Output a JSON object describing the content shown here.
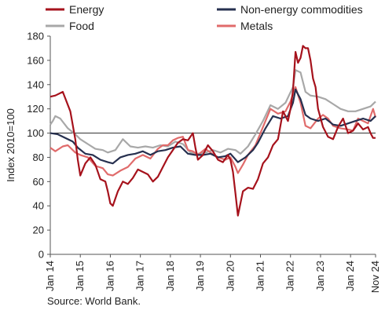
{
  "chart_data": {
    "type": "line",
    "ylabel": "Index 2010=100",
    "ylim": [
      0,
      180
    ],
    "yticks": [
      0,
      20,
      40,
      60,
      80,
      100,
      120,
      140,
      160,
      180
    ],
    "reference_line": 100,
    "x_start": "2014-01",
    "x_end": "2024-11",
    "xticks": [
      "Jan 14",
      "Jan 15",
      "Jan 16",
      "Jan 17",
      "Jan 18",
      "Jan 19",
      "Jan 20",
      "Jan 21",
      "Jan 22",
      "Jan 23",
      "Jan 24",
      "Nov 24"
    ],
    "legend_position": "top",
    "series": [
      {
        "name": "Energy",
        "color": "#a6121c",
        "points": [
          [
            "2014-01",
            130
          ],
          [
            "2014-03",
            131
          ],
          [
            "2014-06",
            134
          ],
          [
            "2014-09",
            118
          ],
          [
            "2014-11",
            95
          ],
          [
            "2014-12",
            78
          ],
          [
            "2015-01",
            65
          ],
          [
            "2015-03",
            75
          ],
          [
            "2015-05",
            80
          ],
          [
            "2015-07",
            74
          ],
          [
            "2015-09",
            62
          ],
          [
            "2015-11",
            60
          ],
          [
            "2015-12",
            52
          ],
          [
            "2016-01",
            42
          ],
          [
            "2016-02",
            40
          ],
          [
            "2016-04",
            52
          ],
          [
            "2016-06",
            60
          ],
          [
            "2016-08",
            58
          ],
          [
            "2016-10",
            63
          ],
          [
            "2016-12",
            70
          ],
          [
            "2017-02",
            68
          ],
          [
            "2017-04",
            66
          ],
          [
            "2017-06",
            60
          ],
          [
            "2017-08",
            64
          ],
          [
            "2017-10",
            72
          ],
          [
            "2017-12",
            80
          ],
          [
            "2018-02",
            86
          ],
          [
            "2018-04",
            92
          ],
          [
            "2018-06",
            95
          ],
          [
            "2018-08",
            94
          ],
          [
            "2018-10",
            100
          ],
          [
            "2018-11",
            88
          ],
          [
            "2018-12",
            78
          ],
          [
            "2019-02",
            82
          ],
          [
            "2019-04",
            90
          ],
          [
            "2019-06",
            85
          ],
          [
            "2019-08",
            78
          ],
          [
            "2019-10",
            76
          ],
          [
            "2019-12",
            82
          ],
          [
            "2020-01",
            78
          ],
          [
            "2020-02",
            68
          ],
          [
            "2020-03",
            50
          ],
          [
            "2020-04",
            32
          ],
          [
            "2020-05",
            42
          ],
          [
            "2020-06",
            52
          ],
          [
            "2020-08",
            55
          ],
          [
            "2020-10",
            54
          ],
          [
            "2020-12",
            62
          ],
          [
            "2021-02",
            75
          ],
          [
            "2021-04",
            80
          ],
          [
            "2021-06",
            90
          ],
          [
            "2021-08",
            95
          ],
          [
            "2021-10",
            118
          ],
          [
            "2021-12",
            110
          ],
          [
            "2022-01",
            120
          ],
          [
            "2022-02",
            135
          ],
          [
            "2022-03",
            167
          ],
          [
            "2022-04",
            158
          ],
          [
            "2022-05",
            162
          ],
          [
            "2022-06",
            172
          ],
          [
            "2022-07",
            170
          ],
          [
            "2022-08",
            170
          ],
          [
            "2022-09",
            160
          ],
          [
            "2022-10",
            145
          ],
          [
            "2022-11",
            138
          ],
          [
            "2022-12",
            120
          ],
          [
            "2023-02",
            105
          ],
          [
            "2023-04",
            97
          ],
          [
            "2023-06",
            95
          ],
          [
            "2023-08",
            105
          ],
          [
            "2023-10",
            112
          ],
          [
            "2023-12",
            100
          ],
          [
            "2024-02",
            102
          ],
          [
            "2024-04",
            108
          ],
          [
            "2024-06",
            103
          ],
          [
            "2024-08",
            105
          ],
          [
            "2024-09",
            100
          ],
          [
            "2024-10",
            96
          ],
          [
            "2024-11",
            96
          ]
        ]
      },
      {
        "name": "Non-energy commodities",
        "color": "#26304f",
        "points": [
          [
            "2014-01",
            100
          ],
          [
            "2014-04",
            99
          ],
          [
            "2014-07",
            96
          ],
          [
            "2014-10",
            93
          ],
          [
            "2014-12",
            88
          ],
          [
            "2015-03",
            83
          ],
          [
            "2015-06",
            82
          ],
          [
            "2015-09",
            78
          ],
          [
            "2015-12",
            76
          ],
          [
            "2016-02",
            75
          ],
          [
            "2016-05",
            80
          ],
          [
            "2016-08",
            82
          ],
          [
            "2016-11",
            83
          ],
          [
            "2017-02",
            85
          ],
          [
            "2017-05",
            82
          ],
          [
            "2017-08",
            85
          ],
          [
            "2017-11",
            86
          ],
          [
            "2018-02",
            88
          ],
          [
            "2018-05",
            89
          ],
          [
            "2018-08",
            83
          ],
          [
            "2018-11",
            82
          ],
          [
            "2019-02",
            82
          ],
          [
            "2019-05",
            83
          ],
          [
            "2019-08",
            80
          ],
          [
            "2019-11",
            81
          ],
          [
            "2020-01",
            83
          ],
          [
            "2020-04",
            76
          ],
          [
            "2020-07",
            80
          ],
          [
            "2020-10",
            86
          ],
          [
            "2020-12",
            92
          ],
          [
            "2021-03",
            104
          ],
          [
            "2021-06",
            114
          ],
          [
            "2021-09",
            112
          ],
          [
            "2021-12",
            114
          ],
          [
            "2022-02",
            125
          ],
          [
            "2022-03",
            136
          ],
          [
            "2022-05",
            128
          ],
          [
            "2022-07",
            115
          ],
          [
            "2022-09",
            112
          ],
          [
            "2022-12",
            110
          ],
          [
            "2023-03",
            112
          ],
          [
            "2023-06",
            107
          ],
          [
            "2023-09",
            106
          ],
          [
            "2023-12",
            108
          ],
          [
            "2024-03",
            110
          ],
          [
            "2024-06",
            112
          ],
          [
            "2024-09",
            110
          ],
          [
            "2024-11",
            114
          ]
        ]
      },
      {
        "name": "Food",
        "color": "#a8a8a8",
        "points": [
          [
            "2014-01",
            107
          ],
          [
            "2014-02",
            110
          ],
          [
            "2014-03",
            114
          ],
          [
            "2014-05",
            112
          ],
          [
            "2014-08",
            104
          ],
          [
            "2014-11",
            99
          ],
          [
            "2015-01",
            95
          ],
          [
            "2015-04",
            91
          ],
          [
            "2015-07",
            87
          ],
          [
            "2015-10",
            86
          ],
          [
            "2015-12",
            84
          ],
          [
            "2016-03",
            86
          ],
          [
            "2016-06",
            95
          ],
          [
            "2016-09",
            89
          ],
          [
            "2016-12",
            88
          ],
          [
            "2017-03",
            89
          ],
          [
            "2017-06",
            88
          ],
          [
            "2017-09",
            90
          ],
          [
            "2017-12",
            89
          ],
          [
            "2018-03",
            93
          ],
          [
            "2018-06",
            91
          ],
          [
            "2018-09",
            84
          ],
          [
            "2018-12",
            83
          ],
          [
            "2019-03",
            84
          ],
          [
            "2019-06",
            86
          ],
          [
            "2019-09",
            84
          ],
          [
            "2019-12",
            87
          ],
          [
            "2020-03",
            86
          ],
          [
            "2020-05",
            83
          ],
          [
            "2020-08",
            89
          ],
          [
            "2020-11",
            99
          ],
          [
            "2021-02",
            110
          ],
          [
            "2021-05",
            123
          ],
          [
            "2021-08",
            120
          ],
          [
            "2021-11",
            125
          ],
          [
            "2022-02",
            138
          ],
          [
            "2022-03",
            152
          ],
          [
            "2022-05",
            150
          ],
          [
            "2022-07",
            134
          ],
          [
            "2022-09",
            131
          ],
          [
            "2022-12",
            130
          ],
          [
            "2023-03",
            128
          ],
          [
            "2023-06",
            124
          ],
          [
            "2023-09",
            120
          ],
          [
            "2023-12",
            118
          ],
          [
            "2024-03",
            118
          ],
          [
            "2024-06",
            120
          ],
          [
            "2024-09",
            122
          ],
          [
            "2024-11",
            126
          ]
        ]
      },
      {
        "name": "Metals",
        "color": "#e06b6b",
        "points": [
          [
            "2014-01",
            88
          ],
          [
            "2014-03",
            85
          ],
          [
            "2014-06",
            89
          ],
          [
            "2014-08",
            90
          ],
          [
            "2014-11",
            84
          ],
          [
            "2015-01",
            82
          ],
          [
            "2015-04",
            80
          ],
          [
            "2015-07",
            73
          ],
          [
            "2015-10",
            71
          ],
          [
            "2015-12",
            66
          ],
          [
            "2016-02",
            65
          ],
          [
            "2016-05",
            69
          ],
          [
            "2016-08",
            72
          ],
          [
            "2016-11",
            79
          ],
          [
            "2017-02",
            82
          ],
          [
            "2017-05",
            79
          ],
          [
            "2017-08",
            87
          ],
          [
            "2017-10",
            90
          ],
          [
            "2017-12",
            90
          ],
          [
            "2018-02",
            94
          ],
          [
            "2018-04",
            96
          ],
          [
            "2018-06",
            97
          ],
          [
            "2018-08",
            86
          ],
          [
            "2018-10",
            85
          ],
          [
            "2018-12",
            82
          ],
          [
            "2019-03",
            87
          ],
          [
            "2019-05",
            84
          ],
          [
            "2019-08",
            80
          ],
          [
            "2019-11",
            78
          ],
          [
            "2020-01",
            80
          ],
          [
            "2020-03",
            72
          ],
          [
            "2020-04",
            67
          ],
          [
            "2020-06",
            74
          ],
          [
            "2020-08",
            82
          ],
          [
            "2020-11",
            90
          ],
          [
            "2021-02",
            105
          ],
          [
            "2021-05",
            120
          ],
          [
            "2021-08",
            116
          ],
          [
            "2021-11",
            118
          ],
          [
            "2022-01",
            126
          ],
          [
            "2022-03",
            138
          ],
          [
            "2022-05",
            125
          ],
          [
            "2022-07",
            106
          ],
          [
            "2022-09",
            104
          ],
          [
            "2022-12",
            112
          ],
          [
            "2023-02",
            115
          ],
          [
            "2023-04",
            112
          ],
          [
            "2023-06",
            106
          ],
          [
            "2023-09",
            104
          ],
          [
            "2023-12",
            103
          ],
          [
            "2024-02",
            102
          ],
          [
            "2024-04",
            112
          ],
          [
            "2024-06",
            110
          ],
          [
            "2024-08",
            108
          ],
          [
            "2024-10",
            120
          ],
          [
            "2024-11",
            113
          ]
        ]
      }
    ]
  },
  "source": "Source: World Bank."
}
